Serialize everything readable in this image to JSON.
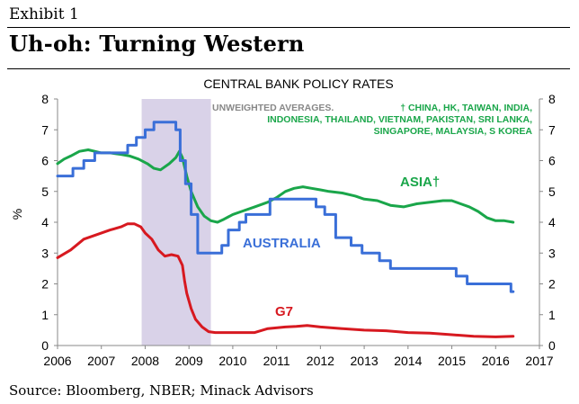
{
  "exhibit_label": "Exhibit 1",
  "headline": "Uh-oh: Turning Western",
  "source": "Source: Bloomberg, NBER; Minack Advisors",
  "colors": {
    "asia": "#1aa64a",
    "australia": "#3a6fd8",
    "g7": "#d71920",
    "recession": "#d9d2e8",
    "axis": "#888888"
  },
  "chart_data": {
    "type": "line",
    "title": "CENTRAL BANK POLICY RATES",
    "ylabel": "%",
    "xlabel": "",
    "xlim": [
      2006,
      2017
    ],
    "ylim": [
      0,
      8
    ],
    "xticks": [
      "2006",
      "2007",
      "2008",
      "2009",
      "2010",
      "2011",
      "2012",
      "2013",
      "2014",
      "2015",
      "2016",
      "2017"
    ],
    "yticks": [
      "0",
      "1",
      "2",
      "3",
      "4",
      "5",
      "6",
      "7",
      "8"
    ],
    "recession_band": {
      "label": "NBER recession",
      "start": 2007.92,
      "end": 2009.5
    },
    "note_gray": "UNWEIGHTED AVERAGES.",
    "note_green_lines": [
      "† CHINA, HK, TAIWAN, INDIA,",
      "INDONESIA, THAILAND, VIETNAM, PAKISTAN, SRI LANKA,",
      "SINGAPORE, MALAYSIA, S KOREA"
    ],
    "series": [
      {
        "name": "ASIA†",
        "x": [
          2006.0,
          2006.15,
          2006.3,
          2006.5,
          2006.7,
          2006.85,
          2007.0,
          2007.2,
          2007.45,
          2007.65,
          2007.85,
          2008.05,
          2008.2,
          2008.35,
          2008.55,
          2008.7,
          2008.78,
          2008.85,
          2008.95,
          2009.05,
          2009.2,
          2009.35,
          2009.5,
          2009.65,
          2009.8,
          2010.0,
          2010.2,
          2010.5,
          2010.8,
          2011.0,
          2011.2,
          2011.4,
          2011.6,
          2011.8,
          2012.0,
          2012.2,
          2012.5,
          2012.8,
          2013.0,
          2013.3,
          2013.6,
          2013.9,
          2014.2,
          2014.5,
          2014.8,
          2015.0,
          2015.2,
          2015.4,
          2015.6,
          2015.8,
          2016.0,
          2016.2,
          2016.4
        ],
        "values": [
          5.9,
          6.05,
          6.15,
          6.3,
          6.35,
          6.3,
          6.25,
          6.25,
          6.2,
          6.15,
          6.05,
          5.9,
          5.75,
          5.7,
          5.9,
          6.1,
          6.3,
          6.1,
          5.5,
          5.0,
          4.5,
          4.2,
          4.05,
          4.0,
          4.1,
          4.25,
          4.35,
          4.5,
          4.65,
          4.8,
          5.0,
          5.1,
          5.15,
          5.1,
          5.05,
          5.0,
          4.95,
          4.85,
          4.75,
          4.7,
          4.55,
          4.5,
          4.6,
          4.65,
          4.7,
          4.7,
          4.6,
          4.5,
          4.35,
          4.15,
          4.05,
          4.05,
          4.0
        ]
      },
      {
        "name": "AUSTRALIA",
        "x": [
          2006.0,
          2006.35,
          2006.35,
          2006.6,
          2006.6,
          2006.85,
          2006.85,
          2007.6,
          2007.6,
          2007.8,
          2007.8,
          2008.0,
          2008.0,
          2008.2,
          2008.2,
          2008.7,
          2008.7,
          2008.8,
          2008.8,
          2008.92,
          2008.92,
          2009.05,
          2009.05,
          2009.2,
          2009.2,
          2009.75,
          2009.75,
          2009.9,
          2009.9,
          2010.15,
          2010.15,
          2010.3,
          2010.3,
          2010.85,
          2010.85,
          2011.9,
          2011.9,
          2012.1,
          2012.1,
          2012.35,
          2012.35,
          2012.7,
          2012.7,
          2012.95,
          2012.95,
          2013.35,
          2013.35,
          2013.6,
          2013.6,
          2015.1,
          2015.1,
          2015.35,
          2015.35,
          2016.35,
          2016.35,
          2016.4
        ],
        "values": [
          5.5,
          5.5,
          5.75,
          5.75,
          6.0,
          6.0,
          6.25,
          6.25,
          6.5,
          6.5,
          6.75,
          6.75,
          7.0,
          7.0,
          7.25,
          7.25,
          7.0,
          7.0,
          6.0,
          6.0,
          5.25,
          5.25,
          4.25,
          4.25,
          3.0,
          3.0,
          3.25,
          3.25,
          3.75,
          3.75,
          4.0,
          4.0,
          4.25,
          4.25,
          4.75,
          4.75,
          4.5,
          4.5,
          4.25,
          4.25,
          3.5,
          3.5,
          3.25,
          3.25,
          3.0,
          3.0,
          2.75,
          2.75,
          2.5,
          2.5,
          2.25,
          2.25,
          2.0,
          2.0,
          1.75,
          1.75
        ]
      },
      {
        "name": "G7",
        "x": [
          2006.0,
          2006.3,
          2006.6,
          2006.9,
          2007.2,
          2007.45,
          2007.6,
          2007.75,
          2007.9,
          2008.0,
          2008.15,
          2008.3,
          2008.45,
          2008.6,
          2008.75,
          2008.85,
          2008.9,
          2008.95,
          2009.05,
          2009.15,
          2009.3,
          2009.45,
          2009.6,
          2010.0,
          2010.5,
          2010.8,
          2011.2,
          2011.45,
          2011.7,
          2012.0,
          2012.5,
          2013.0,
          2013.5,
          2014.0,
          2014.5,
          2015.0,
          2015.5,
          2016.0,
          2016.4
        ],
        "values": [
          2.85,
          3.1,
          3.45,
          3.6,
          3.75,
          3.85,
          3.95,
          3.95,
          3.85,
          3.65,
          3.45,
          3.1,
          2.9,
          2.95,
          2.9,
          2.6,
          2.1,
          1.7,
          1.2,
          0.85,
          0.6,
          0.45,
          0.42,
          0.42,
          0.42,
          0.55,
          0.6,
          0.62,
          0.65,
          0.6,
          0.55,
          0.5,
          0.48,
          0.42,
          0.4,
          0.35,
          0.3,
          0.28,
          0.3
        ]
      }
    ],
    "series_labels": [
      "ASIA†",
      "AUSTRALIA",
      "G7"
    ]
  }
}
